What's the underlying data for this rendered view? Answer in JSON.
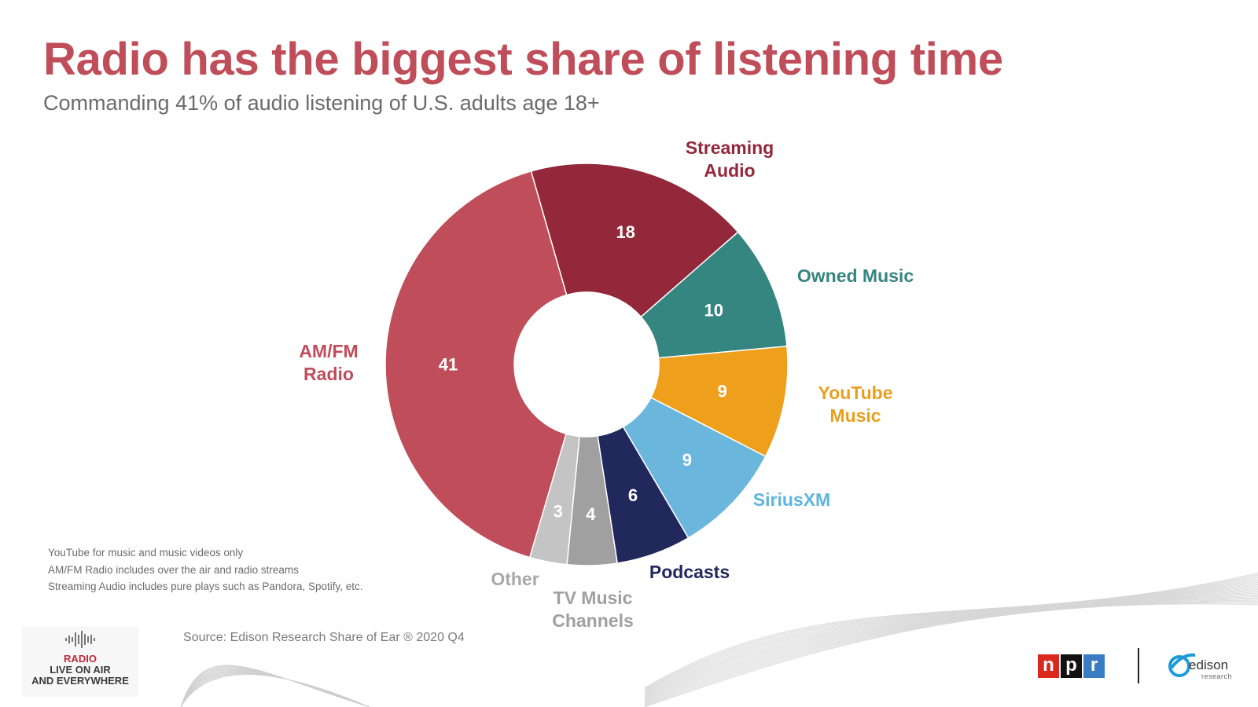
{
  "header": {
    "title": "Radio has the biggest share of listening time",
    "subtitle": "Commanding 41% of audio listening of U.S. adults age 18+"
  },
  "chart_data": {
    "type": "pie",
    "variant": "donut",
    "title": "Radio has the biggest share of listening time",
    "subtitle": "Commanding 41% of audio listening of U.S. adults age 18+",
    "unit": "percent",
    "slices": [
      {
        "label": "Streaming Audio",
        "label_lines": [
          "Streaming",
          "Audio"
        ],
        "value": 18,
        "color": "#922839",
        "label_color": "#922839",
        "value_color": "#ffffff"
      },
      {
        "label": "Owned Music",
        "label_lines": [
          "Owned Music"
        ],
        "value": 10,
        "color": "#358580",
        "label_color": "#358580",
        "value_color": "#ffffff"
      },
      {
        "label": "YouTube Music",
        "label_lines": [
          "YouTube",
          "Music"
        ],
        "value": 9,
        "color": "#eea01d",
        "label_color": "#e8a020",
        "value_color": "#ffffff"
      },
      {
        "label": "SiriusXM",
        "label_lines": [
          "SiriusXM"
        ],
        "value": 9,
        "color": "#6ab6dd",
        "label_color": "#5eb5e0",
        "value_color": "#ffffff"
      },
      {
        "label": "Podcasts",
        "label_lines": [
          "Podcasts"
        ],
        "value": 6,
        "color": "#21295c",
        "label_color": "#21295c",
        "value_color": "#ffffff"
      },
      {
        "label": "TV Music Channels",
        "label_lines": [
          "TV Music",
          "Channels"
        ],
        "value": 4,
        "color": "#a0a0a0",
        "label_color": "#a0a0a0",
        "value_color": "#ffffff"
      },
      {
        "label": "Other",
        "label_lines": [
          "Other"
        ],
        "value": 3,
        "color": "#c4c4c4",
        "label_color": "#a8a8a8",
        "value_color": "#ffffff"
      },
      {
        "label": "AM/FM Radio",
        "label_lines": [
          "AM/FM",
          "Radio"
        ],
        "value": 41,
        "color": "#bf4d5a",
        "label_color": "#bf4d5a",
        "value_color": "#ffffff"
      }
    ]
  },
  "notes": [
    "YouTube for music and music videos only",
    "AM/FM Radio includes over the air and radio streams",
    "Streaming Audio includes pure plays such as Pandora, Spotify, etc."
  ],
  "source": "Source:  Edison Research Share of Ear ® 2020 Q4",
  "logos": {
    "radio": {
      "word": "RADIO",
      "line1": "LIVE ON AIR",
      "line2": "AND EVERYWHERE"
    },
    "npr": [
      "n",
      "p",
      "r"
    ],
    "npr_colors": [
      "#da291c",
      "#111111",
      "#3a7cc3"
    ],
    "edison": {
      "name": "edison",
      "tag": "research"
    }
  }
}
